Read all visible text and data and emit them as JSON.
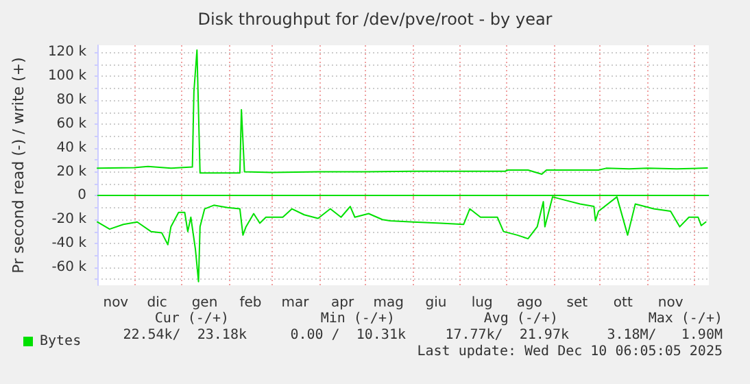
{
  "chart_data": {
    "type": "line",
    "title": "Disk throughput for /dev/pve/root - by year",
    "ylabel": "Pr second read (-) / write (+)",
    "xlim": [
      "2024-11-07",
      "2025-12-11"
    ],
    "xticks": [
      {
        "value": "2024-12-01",
        "label": null
      },
      {
        "value": "2025-01-01",
        "label": null
      },
      {
        "value": "2025-02-01",
        "label": null
      },
      {
        "value": "2025-03-01",
        "label": null
      },
      {
        "value": "2025-04-01",
        "label": null
      },
      {
        "value": "2025-05-01",
        "label": null
      },
      {
        "value": "2025-06-01",
        "label": null
      },
      {
        "value": "2025-07-01",
        "label": null
      },
      {
        "value": "2025-08-01",
        "label": null
      },
      {
        "value": "2025-09-01",
        "label": null
      },
      {
        "value": "2025-10-01",
        "label": null
      },
      {
        "value": "2025-11-01",
        "label": null
      },
      {
        "value": "2025-12-01",
        "label": null
      },
      {
        "value": "2024-11-19",
        "label": "nov"
      },
      {
        "value": "2024-12-16",
        "label": "dic"
      },
      {
        "value": "2025-01-16",
        "label": "gen"
      },
      {
        "value": "2025-02-15",
        "label": "feb"
      },
      {
        "value": "2025-03-16",
        "label": "mar"
      },
      {
        "value": "2025-04-16",
        "label": "apr"
      },
      {
        "value": "2025-05-16",
        "label": "mag"
      },
      {
        "value": "2025-06-16",
        "label": "giu"
      },
      {
        "value": "2025-07-16",
        "label": "lug"
      },
      {
        "value": "2025-08-16",
        "label": "ago"
      },
      {
        "value": "2025-09-16",
        "label": "set"
      },
      {
        "value": "2025-10-16",
        "label": "ott"
      },
      {
        "value": "2025-11-16",
        "label": "nov"
      }
    ],
    "ylim": [
      -75000,
      126000
    ],
    "yticks": [
      {
        "value": -60000,
        "label": "-60 k"
      },
      {
        "value": -40000,
        "label": "-40 k"
      },
      {
        "value": -20000,
        "label": "-20 k"
      },
      {
        "value": 0,
        "label": "0"
      },
      {
        "value": 20000,
        "label": "20 k"
      },
      {
        "value": 40000,
        "label": "40 k"
      },
      {
        "value": 60000,
        "label": "60 k"
      },
      {
        "value": 80000,
        "label": "80 k"
      },
      {
        "value": 100000,
        "label": "100 k"
      },
      {
        "value": 120000,
        "label": "120 k"
      },
      {
        "value": -70000,
        "label": null
      },
      {
        "value": -50000,
        "label": null
      },
      {
        "value": -30000,
        "label": null
      },
      {
        "value": -10000,
        "label": null
      },
      {
        "value": 10000,
        "label": null
      },
      {
        "value": 30000,
        "label": null
      },
      {
        "value": 50000,
        "label": null
      },
      {
        "value": 70000,
        "label": null
      },
      {
        "value": 90000,
        "label": null
      },
      {
        "value": 110000,
        "label": null
      }
    ],
    "grid": true,
    "legend": "bottom left",
    "marker": "none",
    "line_style": "solid",
    "ref_lines": [
      {
        "axis": "y",
        "value": 0,
        "label": null,
        "color": "#00e000"
      }
    ],
    "series": [
      {
        "name": "Bytes",
        "color": "#00e000",
        "x": [
          "2024-11-07",
          "2024-12-01",
          "2024-12-10",
          "2024-12-25",
          "2025-01-08",
          "2025-01-09",
          "2025-01-11",
          "2025-01-13",
          "2025-02-08",
          "2025-02-09",
          "2025-02-11",
          "2025-03-01",
          "2025-04-01",
          "2025-05-01",
          "2025-06-01",
          "2025-07-01",
          "2025-07-31",
          "2025-08-02",
          "2025-08-15",
          "2025-08-24",
          "2025-08-27",
          "2025-09-01",
          "2025-09-30",
          "2025-10-05",
          "2025-10-20",
          "2025-11-01",
          "2025-11-20",
          "2025-12-10"
        ],
        "values": [
          23000,
          23500,
          24500,
          23000,
          24000,
          87000,
          122000,
          19000,
          19000,
          72000,
          20000,
          19500,
          20000,
          20000,
          20500,
          20500,
          20500,
          21500,
          21500,
          18000,
          21500,
          21500,
          21500,
          23000,
          22500,
          23000,
          22500,
          23200
        ]
      },
      {
        "color": "#00e000",
        "x": [
          "2024-11-07",
          "2024-11-15",
          "2024-11-24",
          "2024-12-03",
          "2024-12-12",
          "2024-12-19",
          "2024-12-23",
          "2024-12-25",
          "2024-12-30",
          "2025-01-03",
          "2025-01-05",
          "2025-01-07",
          "2025-01-10",
          "2025-01-12",
          "2025-01-13",
          "2025-01-16",
          "2025-01-22",
          "2025-01-31",
          "2025-02-08",
          "2025-02-10",
          "2025-02-12",
          "2025-02-17",
          "2025-02-21",
          "2025-02-25",
          "2025-03-08",
          "2025-03-14",
          "2025-03-22",
          "2025-03-31",
          "2025-04-08",
          "2025-04-15",
          "2025-04-21",
          "2025-04-24",
          "2025-05-03",
          "2025-05-12",
          "2025-05-17",
          "2025-06-01",
          "2025-06-19",
          "2025-07-04",
          "2025-07-08",
          "2025-07-15",
          "2025-07-26",
          "2025-07-30",
          "2025-08-08",
          "2025-08-15",
          "2025-08-21",
          "2025-08-25",
          "2025-08-26",
          "2025-08-31",
          "2025-09-09",
          "2025-09-18",
          "2025-09-27",
          "2025-09-28",
          "2025-09-30",
          "2025-10-12",
          "2025-10-19",
          "2025-10-24",
          "2025-11-05",
          "2025-11-16",
          "2025-11-22",
          "2025-11-28",
          "2025-12-04",
          "2025-12-06",
          "2025-12-09"
        ],
        "values": [
          -22000,
          -28000,
          -24000,
          -22000,
          -30000,
          -31000,
          -41000,
          -26000,
          -14000,
          -14000,
          -30000,
          -18000,
          -45000,
          -72000,
          -26000,
          -11000,
          -8000,
          -10000,
          -11000,
          -33000,
          -26000,
          -15000,
          -23000,
          -18000,
          -18000,
          -11000,
          -16000,
          -19000,
          -11000,
          -18000,
          -9000,
          -18000,
          -15000,
          -20000,
          -21000,
          -22000,
          -23000,
          -24000,
          -11000,
          -18000,
          -18000,
          -30000,
          -33000,
          -36000,
          -26000,
          -5000,
          -26000,
          -1000,
          -4000,
          -7000,
          -9000,
          -21000,
          -13000,
          -1000,
          -33000,
          -7000,
          -11000,
          -13000,
          -26000,
          -18000,
          -18000,
          -25000,
          -22000
        ]
      }
    ],
    "annotations": [
      "Cur (-/+)",
      "Min (-/+)",
      "Avg (-/+)",
      "Max (-/+)",
      "22.54k/  23.18k",
      "0.00 /  10.31k",
      "17.77k/  21.97k",
      "3.18M/   1.90M",
      "Last update: Wed Dec 10 06:05:05 2025"
    ]
  }
}
